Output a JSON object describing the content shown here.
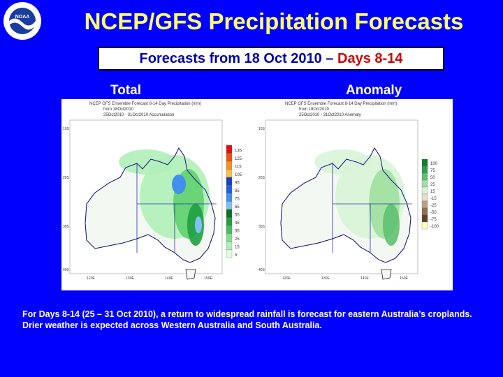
{
  "logo": {
    "text": "NOAA"
  },
  "title": "NCEP/GFS Precipitation Forecasts",
  "subtitle": {
    "prefix": "Forecasts from 18 Oct 2010 –",
    "highlight": "Days 8-14"
  },
  "panels": [
    {
      "label": "Total",
      "header": [
        "NCEP GFS Ensemble Forecast 8-14 Day Precipitation (mm)",
        "from 18Oct2010",
        "25Oct2010 - 31Oct2010 Accumulation"
      ],
      "lat_ticks": [
        "10S",
        "20S",
        "30S",
        "40S"
      ],
      "lon_ticks": [
        "120E",
        "130E",
        "140E",
        "150E"
      ],
      "legend": [
        "135",
        "125",
        "115",
        "105",
        "95",
        "85",
        "75",
        "65",
        "55",
        "45",
        "35",
        "25",
        "15",
        "5"
      ],
      "legend_colors": [
        "#e01010",
        "#f05010",
        "#f89020",
        "#ffc040",
        "#1840c0",
        "#2060e0",
        "#4090f0",
        "#80c0f8",
        "#107020",
        "#20a040",
        "#40c060",
        "#80e090",
        "#b0f0b8",
        "#e0ffe0"
      ]
    },
    {
      "label": "Anomaly",
      "header": [
        "NCEP GFS Ensemble Forecast 8-14 Day Precipitation (mm)",
        "from 18Oct2010",
        "25Oct2010 - 31Oct2010 Anomaly"
      ],
      "lat_ticks": [
        "10S",
        "20S",
        "30S",
        "40S"
      ],
      "lon_ticks": [
        "120E",
        "130E",
        "140E",
        "150E"
      ],
      "legend": [
        "100",
        "75",
        "50",
        "25",
        "15",
        "-15",
        "-25",
        "-50",
        "-75",
        "-100"
      ],
      "legend_colors": [
        "#108030",
        "#30a050",
        "#60c070",
        "#a0e0a0",
        "#d8f4d8",
        "#e8dcd0",
        "#c0a080",
        "#907050",
        "#604030",
        "#ffffc0"
      ]
    }
  ],
  "caption": "For Days 8-14 (25 – 31 Oct 2010), a return to widespread rainfall is forecast for eastern Australia’s croplands.  Drier weather is expected across Western Australia and South Australia.",
  "colors": {
    "background": "#0000ff",
    "title": "#ffff66",
    "highlight": "#cc0000"
  }
}
